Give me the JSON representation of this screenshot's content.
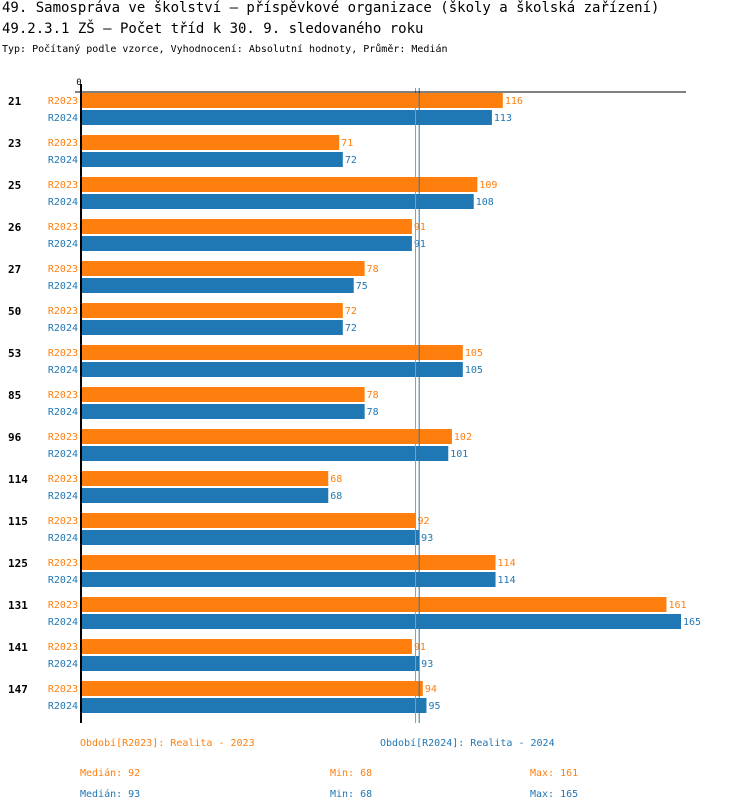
{
  "header": {
    "title": "49. Samospráva ve školství – příspěvkové organizace (školy a školská zařízení)",
    "subtitle": "49.2.3.1 ZŠ – Počet tříd k 30. 9. sledovaného roku",
    "info": "Typ: Počítaný podle vzorce, Vyhodnocení: Absolutní hodnoty, Průměr: Medián"
  },
  "colors": {
    "R2023": "#ff7f0e",
    "R2024": "#1f77b4",
    "axis": "#000000"
  },
  "chart_data": {
    "type": "bar",
    "orientation": "horizontal",
    "title": "49.2.3.1 ZŠ – Počet tříd k 30. 9. sledovaného roku",
    "xlabel": "",
    "ylabel": "",
    "x_tick_labels": [
      "0"
    ],
    "xlim": [
      0,
      165
    ],
    "categories": [
      "21",
      "23",
      "25",
      "26",
      "27",
      "50",
      "53",
      "85",
      "96",
      "114",
      "115",
      "125",
      "131",
      "141",
      "147"
    ],
    "series": [
      {
        "name": "R2023",
        "values": [
          116,
          71,
          109,
          91,
          78,
          72,
          105,
          78,
          102,
          68,
          92,
          114,
          161,
          91,
          94
        ]
      },
      {
        "name": "R2024",
        "values": [
          113,
          72,
          108,
          91,
          75,
          72,
          105,
          78,
          101,
          68,
          93,
          114,
          165,
          93,
          95
        ]
      }
    ],
    "reference_lines": [
      {
        "series": "R2023",
        "label": "Medián",
        "value": 92
      },
      {
        "series": "R2024",
        "label": "Medián",
        "value": 93
      }
    ],
    "legend": [
      {
        "series": "R2023",
        "text": "Období[R2023]: Realita - 2023"
      },
      {
        "series": "R2024",
        "text": "Období[R2024]: Realita - 2024"
      }
    ],
    "stats": [
      {
        "series": "R2023",
        "median": "Medián: 92",
        "min": "Min: 68",
        "max": "Max: 161"
      },
      {
        "series": "R2024",
        "median": "Medián: 93",
        "min": "Min: 68",
        "max": "Max: 165"
      }
    ],
    "grid": false,
    "legend_position": "bottom"
  }
}
